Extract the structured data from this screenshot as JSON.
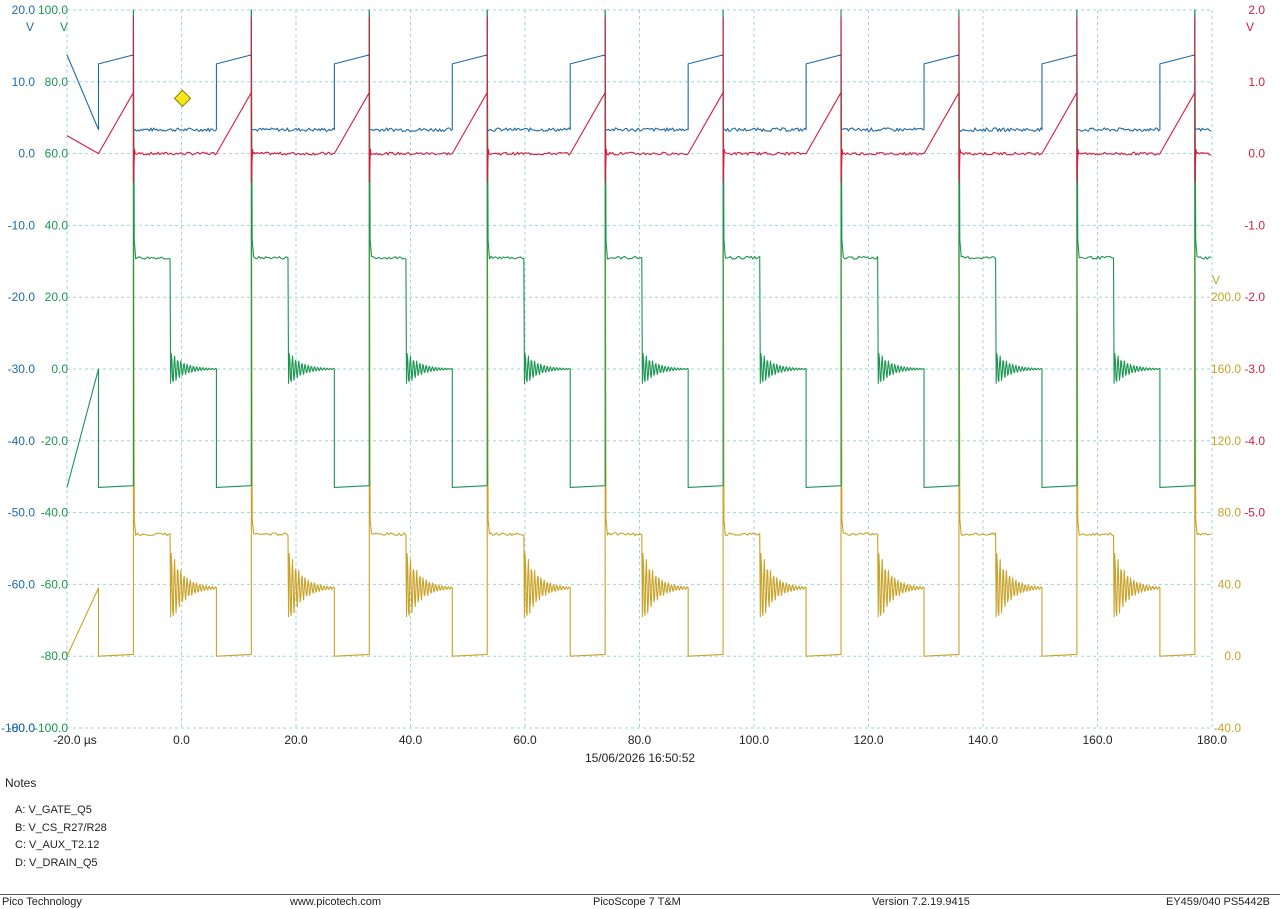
{
  "chart_data": {
    "type": "line",
    "x": {
      "unit": "µs",
      "range": [
        -20,
        180
      ],
      "tick_labels": [
        "-20.0 µs",
        "0.0",
        "20.0",
        "40.0",
        "60.0",
        "80.0",
        "100.0",
        "120.0",
        "140.0",
        "160.0",
        "180.0"
      ]
    },
    "timestamp": "15/06/2026 16:50:52",
    "trigger_time_us": 0,
    "grid": true,
    "axes": [
      {
        "id": "A",
        "unit": "V",
        "range": [
          -100,
          20
        ],
        "side": "left-outer",
        "color": "#1e6aa8",
        "tick_labels": [
          "20.0",
          "10.0",
          "0.0",
          "-10.0",
          "-20.0",
          "-30.0",
          "-40.0",
          "-50.0",
          "-60.0",
          "-70.0",
          "-80.0",
          "-100.0"
        ]
      },
      {
        "id": "C",
        "unit": "V",
        "range": [
          -100,
          100
        ],
        "side": "left-inner",
        "color": "#1a9650",
        "tick_labels": [
          "100.0",
          "80.0",
          "60.0",
          "40.0",
          "20.0",
          "0.0",
          "-20.0",
          "-40.0",
          "-60.0",
          "-80.0",
          "-100.0"
        ]
      },
      {
        "id": "B",
        "unit": "V",
        "range": [
          -8,
          2
        ],
        "side": "right-outer",
        "color": "#d81c3f",
        "tick_labels": [
          "2.0",
          "1.0",
          "0.0",
          "-1.0",
          "-2.0",
          "-3.0",
          "-4.0",
          "-5.0"
        ]
      },
      {
        "id": "D",
        "unit": "V",
        "range": [
          -40,
          360
        ],
        "side": "right-inner",
        "color": "#c9a227",
        "tick_labels": [
          "200.0",
          "160.0",
          "120.0",
          "80.0",
          "40.0",
          "0.0",
          "-40.0"
        ]
      }
    ],
    "period_us": 20.6,
    "first_on_edge_us": -14.5,
    "series": [
      {
        "name": "A",
        "color": "#1e6aa8",
        "on_level_V": 12.5,
        "off_level_V": 0,
        "on_time_us": 6.1
      },
      {
        "name": "B",
        "color": "#d81c3f",
        "on_start_V": 0.0,
        "peak_V": 0.85,
        "off_level_V": 0
      },
      {
        "name": "C",
        "color": "#1a9650",
        "on_level_V": -33,
        "plateau_V": 31,
        "ring_V": 0,
        "spike_V": 40
      },
      {
        "name": "D",
        "color": "#c9a227",
        "on_level_V": 0,
        "plateau_V": 68,
        "ring_V": 38,
        "spike_V": 110
      }
    ]
  },
  "notes": {
    "title": "Notes",
    "lines": [
      "A: V_GATE_Q5",
      "B: V_CS_R27/R28",
      "C: V_AUX_T2.12",
      "D: V_DRAIN_Q5"
    ]
  },
  "footer": {
    "company": "Pico Technology",
    "website": "www.picotech.com",
    "product": "PicoScope 7 T&M",
    "version": "Version 7.2.19.9415",
    "device": "EY459/040 PS5442B"
  }
}
